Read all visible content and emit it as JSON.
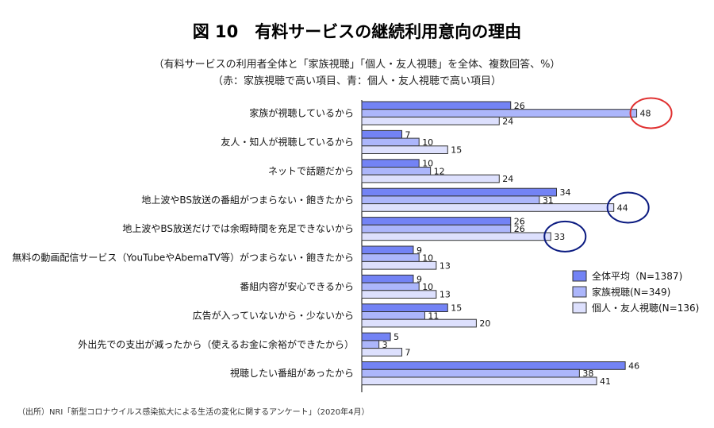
{
  "chart_data": {
    "type": "bar",
    "orientation": "horizontal",
    "title": "図 10　有料サービスの継続利用意向の理由",
    "subtitle": [
      "（有料サービスの利用者全体と「家族視聴」「個人・友人視聴」を全体、複数回答、%）",
      "（赤：家族視聴で高い項目、青：個人・友人視聴で高い項目）"
    ],
    "source": "（出所）NRI「新型コロナウイルス感染拡大による生活の変化に関するアンケート」（2020年4月）",
    "categories": [
      "家族が視聴しているから",
      "友人・知人が視聴しているから",
      "ネットで話題だから",
      "地上波やBS放送の番組がつまらない・飽きたから",
      "地上波やBS放送だけでは余暇時間を充足できないから",
      "無料の動画配信サービス（YouTubeやAbemaTV等）がつまらない・飽きたから",
      "番組内容が安心できるから",
      "広告が入っていないから・少ないから",
      "外出先での支出が減ったから（使えるお金に余裕ができたから）",
      "視聴したい番組があったから"
    ],
    "series": [
      {
        "name": "全体平均（N=1387)",
        "color": "#7383f5",
        "values": [
          26,
          7,
          10,
          34,
          26,
          9,
          9,
          15,
          5,
          46
        ]
      },
      {
        "name": "家族視聴(N=349)",
        "color": "#acb6fb",
        "values": [
          48,
          10,
          12,
          31,
          26,
          10,
          10,
          11,
          3,
          38
        ]
      },
      {
        "name": "個人・友人視聴(N=136)",
        "color": "#dde0fd",
        "values": [
          24,
          15,
          24,
          44,
          33,
          13,
          13,
          20,
          7,
          41
        ]
      }
    ],
    "highlights": [
      {
        "category_index": 0,
        "series_index": 1,
        "color": "#e03030"
      },
      {
        "category_index": 3,
        "series_index": 2,
        "color": "#0a1a80"
      },
      {
        "category_index": 4,
        "series_index": 2,
        "color": "#0a1a80"
      }
    ],
    "xlim": [
      0,
      50
    ],
    "legend": "right-lower"
  }
}
